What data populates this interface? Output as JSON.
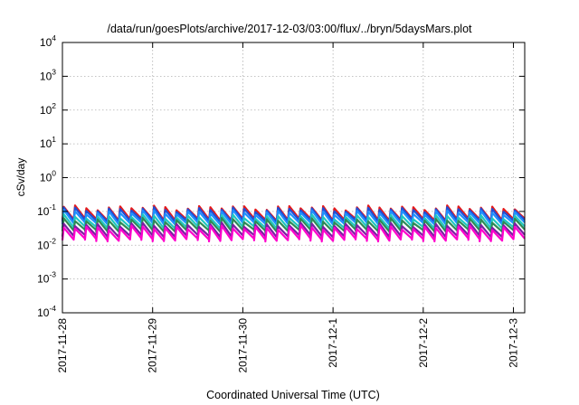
{
  "chart_data": {
    "type": "line",
    "title": "/data/run/goesPlots/archive/2017-12-03/03:00/flux/../bryn/5daysMars.plot",
    "xlabel": "Coordinated Universal Time (UTC)",
    "ylabel": "cSv/day",
    "y_scale": "log",
    "ylim": [
      0.0001,
      10000
    ],
    "y_ticks": [
      {
        "base": "10",
        "exp": "-4",
        "value": 0.0001
      },
      {
        "base": "10",
        "exp": "-3",
        "value": 0.001
      },
      {
        "base": "10",
        "exp": "-2",
        "value": 0.01
      },
      {
        "base": "10",
        "exp": "-1",
        "value": 0.1
      },
      {
        "base": "10",
        "exp": "0",
        "value": 1
      },
      {
        "base": "10",
        "exp": "1",
        "value": 10
      },
      {
        "base": "10",
        "exp": "2",
        "value": 100
      },
      {
        "base": "10",
        "exp": "3",
        "value": 1000
      },
      {
        "base": "10",
        "exp": "4",
        "value": 10000
      }
    ],
    "xlim": [
      "2017-11-28T00:00",
      "2017-12-03T03:00"
    ],
    "x_ticks": [
      {
        "label": "2017-11-28",
        "value": "2017-11-28T00:00"
      },
      {
        "label": "2017-11-29",
        "value": "2017-11-29T00:00"
      },
      {
        "label": "2017-11-30",
        "value": "2017-11-30T00:00"
      },
      {
        "label": "2017-12-1",
        "value": "2017-12-01T00:00"
      },
      {
        "label": "2017-12-2",
        "value": "2017-12-02T00:00"
      },
      {
        "label": "2017-12-3",
        "value": "2017-12-03T00:00"
      }
    ],
    "grid": true,
    "legend": "none",
    "pattern": {
      "description": "sawtooth dose-rate traces repeating roughly every 3 hours",
      "period_hours": 3,
      "start": "2017-11-28T00:00",
      "end": "2017-12-03T03:00"
    },
    "series": [
      {
        "color": "#e41a1c",
        "peak": 0.13,
        "trough": 0.055
      },
      {
        "color": "#1f4fd6",
        "peak": 0.115,
        "trough": 0.05
      },
      {
        "color": "#1e90ff",
        "peak": 0.095,
        "trough": 0.042
      },
      {
        "color": "#20c8c0",
        "peak": 0.07,
        "trough": 0.032
      },
      {
        "color": "#2e8b57",
        "peak": 0.055,
        "trough": 0.026
      },
      {
        "color": "#7a1fa2",
        "peak": 0.04,
        "trough": 0.018
      },
      {
        "color": "#ff00cc",
        "peak": 0.033,
        "trough": 0.014
      }
    ]
  }
}
